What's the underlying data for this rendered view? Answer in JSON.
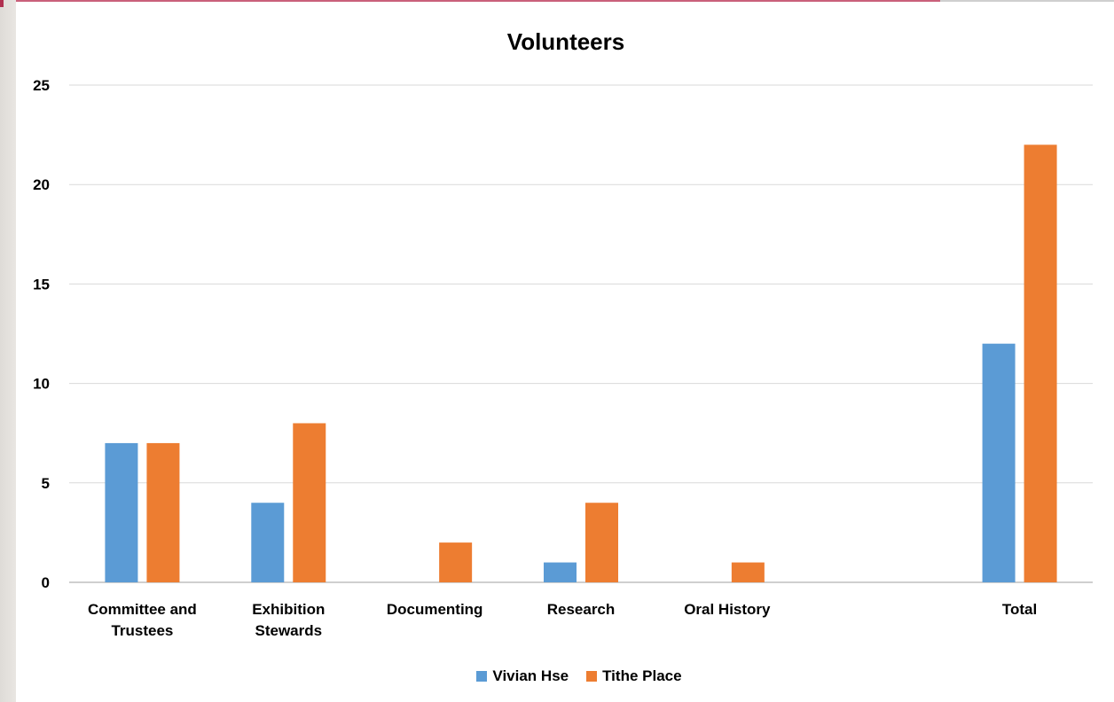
{
  "chart_data": {
    "type": "bar",
    "title": "Volunteers",
    "xlabel": "",
    "ylabel": "",
    "ylim": [
      0,
      25
    ],
    "yticks": [
      0,
      5,
      10,
      15,
      20,
      25
    ],
    "grid": true,
    "legend_position": "bottom",
    "categories": [
      [
        "Committee and",
        "Trustees"
      ],
      [
        "Exhibition",
        "Stewards"
      ],
      [
        "Documenting"
      ],
      [
        "Research"
      ],
      [
        "Oral History"
      ],
      [
        ""
      ],
      [
        "Total"
      ]
    ],
    "series": [
      {
        "name": "Vivian Hse",
        "color": "#5b9bd5",
        "values": [
          7,
          4,
          null,
          1,
          null,
          null,
          12
        ]
      },
      {
        "name": "Tithe Place",
        "color": "#ed7d31",
        "values": [
          7,
          8,
          2,
          4,
          1,
          null,
          22
        ]
      }
    ]
  }
}
